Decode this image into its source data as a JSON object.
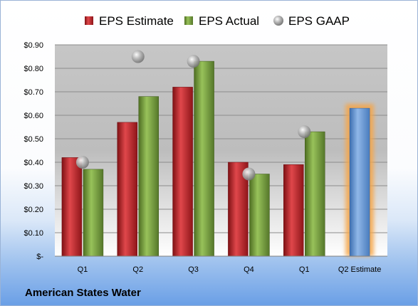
{
  "company": "American States Water",
  "chart_data": {
    "type": "bar",
    "title": "",
    "xlabel": "",
    "ylabel": "",
    "categories": [
      "Q1",
      "Q2",
      "Q3",
      "Q4",
      "Q1",
      "Q2 Estimate"
    ],
    "ylim": [
      0,
      0.9
    ],
    "yticks": [
      {
        "value": 0.0,
        "label": "$-"
      },
      {
        "value": 0.1,
        "label": "$0.10"
      },
      {
        "value": 0.2,
        "label": "$0.20"
      },
      {
        "value": 0.3,
        "label": "$0.30"
      },
      {
        "value": 0.4,
        "label": "$0.40"
      },
      {
        "value": 0.5,
        "label": "$0.50"
      },
      {
        "value": 0.6,
        "label": "$0.60"
      },
      {
        "value": 0.7,
        "label": "$0.70"
      },
      {
        "value": 0.8,
        "label": "$0.80"
      },
      {
        "value": 0.9,
        "label": "$0.90"
      }
    ],
    "grid": true,
    "legend_position": "top",
    "series": [
      {
        "name": "EPS Estimate",
        "kind": "bar",
        "color": "#c0272d",
        "values": [
          0.42,
          0.57,
          0.72,
          0.4,
          0.39,
          null
        ]
      },
      {
        "name": "EPS Actual",
        "kind": "bar",
        "color": "#77a03a",
        "values": [
          0.37,
          0.68,
          0.83,
          0.35,
          0.53,
          null
        ]
      },
      {
        "name": "EPS GAAP",
        "kind": "marker",
        "color": "#a6a6a6",
        "values": [
          0.4,
          0.85,
          0.83,
          0.35,
          0.53,
          null
        ]
      }
    ],
    "forecast": {
      "category_index": 5,
      "value": 0.63,
      "color": "#5b8fd0",
      "glow_color": "#f5a64a"
    }
  }
}
